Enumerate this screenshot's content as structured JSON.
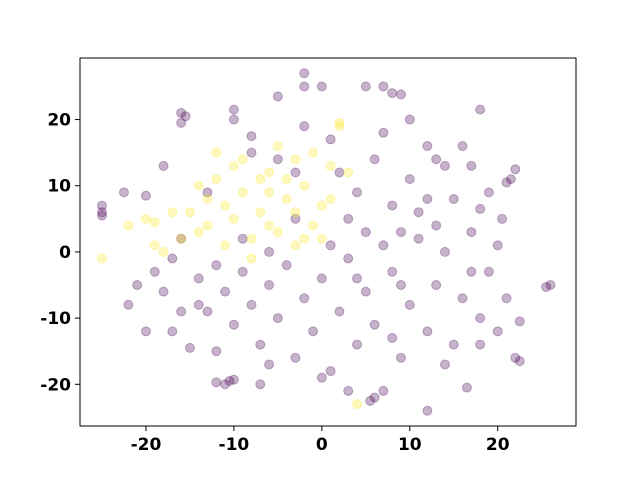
{
  "chart_data": {
    "type": "scatter",
    "xlim": [
      -27.5,
      28.9
    ],
    "ylim": [
      -26.3,
      29.3
    ],
    "xticks": [
      -20,
      -10,
      0,
      10,
      20
    ],
    "yticks": [
      -20,
      -10,
      0,
      10,
      20
    ],
    "series": [
      {
        "color": "#440154",
        "x": [
          -25,
          -25,
          -25,
          -22.5,
          -22,
          -20,
          -20,
          -17,
          -16,
          -15.5,
          -16,
          -11,
          -10.5,
          -10,
          -12,
          -10,
          -10,
          -8,
          -5,
          -2,
          -2,
          0,
          5,
          7,
          8,
          9,
          18,
          12,
          6,
          5.5,
          7,
          16.5,
          22,
          22.5,
          22.5,
          26,
          25.5,
          22,
          21.5,
          21,
          20.5,
          18,
          -15,
          -21,
          -19,
          -18,
          -17,
          -16,
          -14,
          -13,
          -12,
          -11,
          -10,
          -9,
          -8,
          -7,
          -6,
          -5,
          -4,
          -3,
          -2,
          -1,
          0,
          1,
          2,
          3,
          4,
          5,
          6,
          7,
          8,
          9,
          10,
          11,
          12,
          13,
          14,
          15,
          16,
          17,
          18,
          19,
          20,
          21,
          15,
          14,
          12,
          10,
          8,
          6,
          4,
          7,
          10,
          13,
          16,
          17,
          19,
          11,
          9,
          13,
          5,
          3,
          2,
          1,
          -2,
          -5,
          -3,
          -8,
          -13,
          -18,
          -12,
          -6,
          -14,
          0,
          3,
          8,
          14,
          18,
          -9,
          -6,
          -3,
          1,
          4,
          17,
          12,
          9,
          -16,
          -7,
          20
        ],
        "y": [
          7,
          6,
          5.5,
          9,
          -8,
          -12,
          8.5,
          -12,
          21,
          20.5,
          19.5,
          -20,
          -19.5,
          -19.3,
          -19.7,
          21.5,
          20,
          17.5,
          23.5,
          27,
          25,
          25,
          25,
          25,
          24,
          23.8,
          21.5,
          -24,
          -22,
          -22.5,
          -21,
          -20.5,
          -16,
          -16.5,
          -10.5,
          -5,
          -5.3,
          12.5,
          11,
          10.5,
          5,
          6.5,
          -14.5,
          -5,
          -3,
          -6,
          -1,
          2,
          -4,
          -9,
          -2,
          -6,
          -11,
          -3,
          -8,
          -14,
          -5,
          -10,
          -2,
          -16,
          -7,
          -12,
          -4,
          -18,
          -9,
          -1,
          -14,
          -6,
          -11,
          1,
          -3,
          -16,
          -8,
          2,
          -12,
          -5,
          0,
          -14,
          -7,
          3,
          -10,
          -3,
          1,
          -7,
          8,
          13,
          16,
          11,
          7,
          14,
          9,
          18,
          20,
          14,
          16,
          13,
          9,
          6,
          3,
          4,
          3,
          5,
          12,
          17,
          19,
          14,
          12,
          15,
          9,
          13,
          -15,
          -17,
          -8,
          -19,
          -21,
          -13,
          -17,
          -14,
          2,
          0,
          5,
          1,
          -4,
          -3,
          8,
          -5,
          -9,
          -20,
          -12
        ]
      },
      {
        "color": "#fde725",
        "x": [
          -25,
          4,
          2,
          2,
          -20,
          -19,
          -22,
          -15,
          -14,
          -13,
          -12,
          -11,
          -10,
          -9,
          -8,
          -7,
          -6,
          -5,
          -4,
          -3,
          -2,
          -1,
          0,
          -12,
          -10,
          -7,
          -5,
          -3,
          -1,
          1,
          -16,
          -18,
          -11,
          -8,
          -6,
          -4,
          -2,
          1,
          3,
          -14,
          -9,
          -17,
          -13,
          -6,
          -3,
          0,
          -19
        ],
        "y": [
          -1,
          -23,
          19.5,
          19,
          5,
          4.5,
          4,
          6,
          3,
          8,
          11,
          1,
          5,
          9,
          2,
          6,
          12,
          3,
          8,
          1,
          10,
          4,
          7,
          15,
          13,
          11,
          16,
          14,
          15,
          13,
          2,
          0,
          7,
          -1,
          4,
          11,
          2,
          8,
          12,
          10,
          14,
          6,
          4,
          9,
          6,
          2,
          1
        ]
      }
    ]
  }
}
